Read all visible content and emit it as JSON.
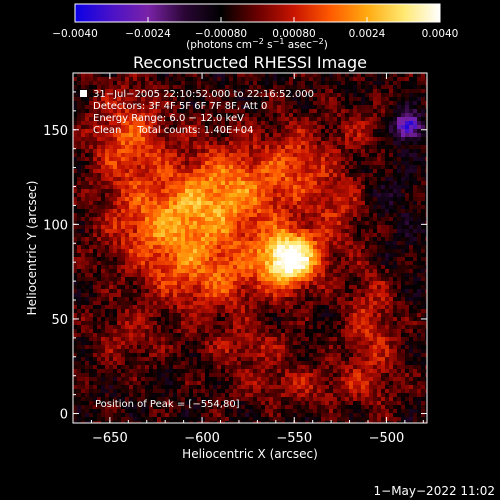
{
  "chart_data": {
    "type": "heatmap",
    "title": "Reconstructed RHESSI Image",
    "xlabel": "Heliocentric X (arcsec)",
    "ylabel": "Heliocentric Y (arcsec)",
    "xlim": [
      -670,
      -478
    ],
    "ylim": [
      -5,
      180
    ],
    "x_ticks": [
      -650,
      -600,
      -550,
      -500
    ],
    "x_tick_labels": [
      "−650",
      "−600",
      "−550",
      "−500"
    ],
    "y_ticks": [
      0,
      50,
      100,
      150
    ],
    "y_tick_labels": [
      "0",
      "50",
      "100",
      "150"
    ],
    "colorbar": {
      "ticks": [
        -0.004,
        -0.0024,
        -0.0008,
        0.0008,
        0.0024,
        0.004
      ],
      "tick_labels": [
        "−0.0040",
        "−0.0024",
        "−0.00080",
        "0.00080",
        "0.0024",
        "0.0040"
      ],
      "label_parts": [
        "(photons cm",
        "−2",
        " s",
        "−1",
        " asec",
        "−2",
        ")"
      ],
      "range": [
        -0.004,
        0.004
      ]
    },
    "annotations": [
      "31−Jul−2005 22:10:52.000 to 22:16:52.000",
      "Detectors: 3F 4F 5F 6F 7F 8F, Att 0",
      "Energy Range: 6.0 − 12.0 keV",
      "Clean     Total counts: 1.40E+04"
    ],
    "peak_label": "Position of Peak = [−554,80]",
    "peak": [
      -554,
      80
    ],
    "sources": [
      {
        "x": -552,
        "y": 82,
        "sx": 11,
        "sy": 10,
        "amp": 0.0048
      },
      {
        "x": -585,
        "y": 118,
        "sx": 22,
        "sy": 18,
        "amp": 0.0024
      },
      {
        "x": -620,
        "y": 100,
        "sx": 22,
        "sy": 16,
        "amp": 0.0022
      },
      {
        "x": -595,
        "y": 72,
        "sx": 24,
        "sy": 14,
        "amp": 0.0018
      },
      {
        "x": -640,
        "y": 145,
        "sx": 14,
        "sy": 18,
        "amp": 0.0019
      },
      {
        "x": -548,
        "y": 132,
        "sx": 12,
        "sy": 16,
        "amp": 0.0013
      },
      {
        "x": -525,
        "y": 110,
        "sx": 10,
        "sy": 16,
        "amp": 0.0012
      },
      {
        "x": -508,
        "y": 48,
        "sx": 10,
        "sy": 28,
        "amp": 0.0014
      },
      {
        "x": -575,
        "y": 35,
        "sx": 18,
        "sy": 8,
        "amp": 0.001
      },
      {
        "x": -640,
        "y": 40,
        "sx": 14,
        "sy": 10,
        "amp": 0.0009
      },
      {
        "x": -545,
        "y": 15,
        "sx": 26,
        "sy": 7,
        "amp": 0.001
      },
      {
        "x": -515,
        "y": 150,
        "sx": 10,
        "sy": 10,
        "amp": 0.0008
      },
      {
        "x": -488,
        "y": 152,
        "sx": 5,
        "sy": 5,
        "amp": -0.003
      },
      {
        "x": -500,
        "y": 100,
        "sx": 14,
        "sy": 30,
        "amp": -0.0005
      }
    ],
    "background": -0.00055,
    "colors": {
      "background": "#000000",
      "text": "#ffffff",
      "cmap": [
        "#0a00e6",
        "#4a12c8",
        "#7a22a8",
        "#2a0634",
        "#000000",
        "#6a0000",
        "#c81400",
        "#ff5a00",
        "#ffaa10",
        "#ffe870",
        "#ffffff"
      ]
    }
  },
  "footer": {
    "date": "1−May−2022 11:02"
  }
}
